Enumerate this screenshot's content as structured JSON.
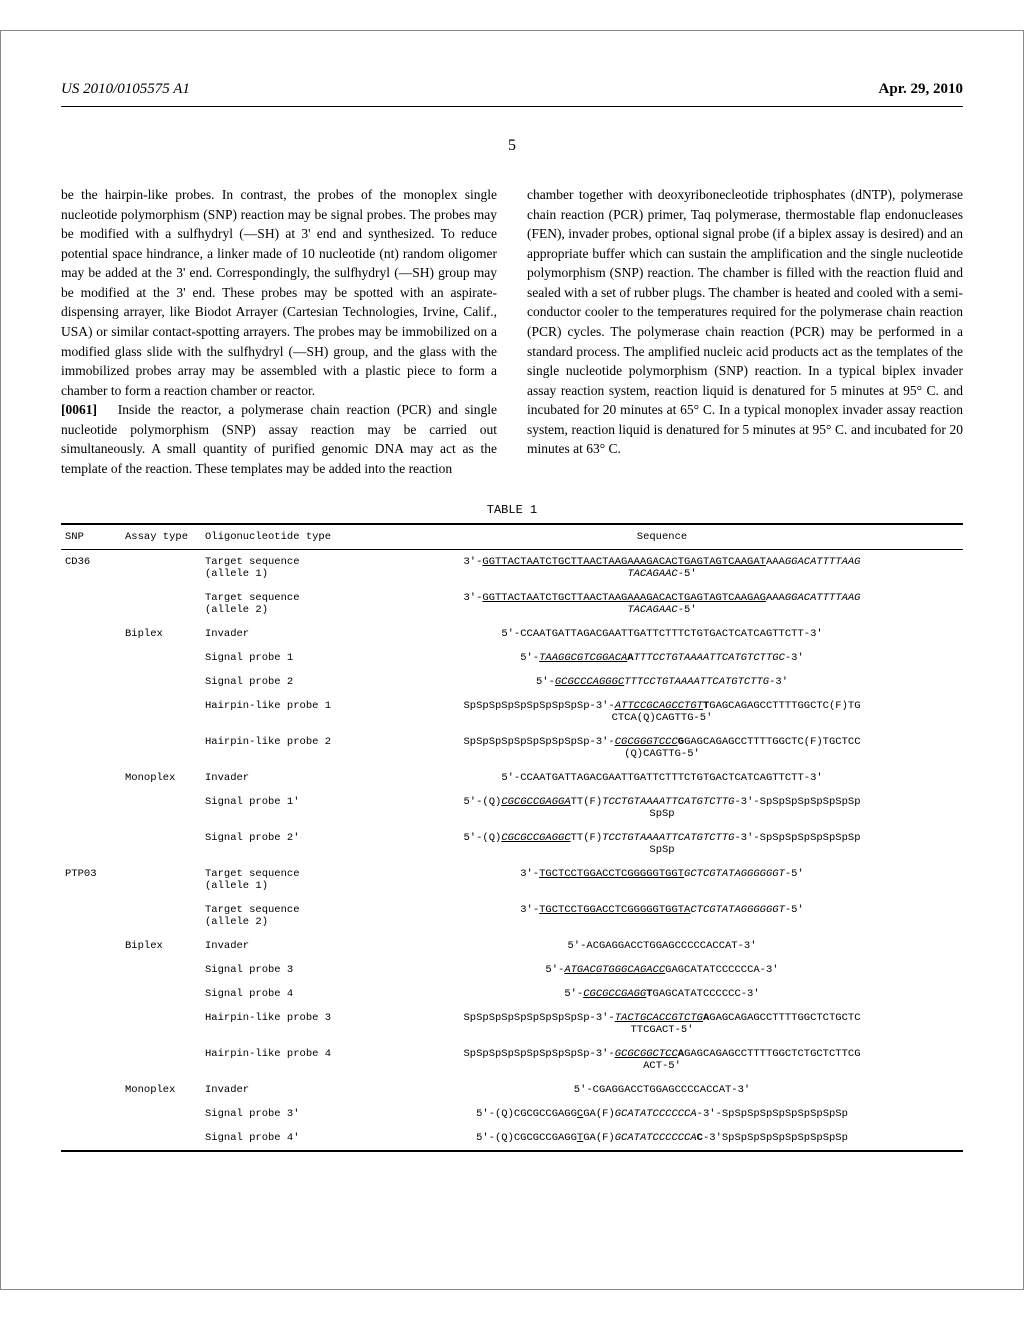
{
  "header": {
    "left": "US 2010/0105575 A1",
    "right": "Apr. 29, 2010",
    "page_number": "5"
  },
  "body": {
    "col1": {
      "p1": "be the hairpin-like probes. In contrast, the probes of the monoplex single nucleotide polymorphism (SNP) reaction may be signal probes. The probes may be modified with a sulfhydryl (—SH) at 3' end and synthesized. To reduce potential space hindrance, a linker made of 10 nucleotide (nt) random oligomer may be added at the 3' end. Correspondingly, the sulfhydryl (—SH) group may be modified at the 3' end. These probes may be spotted with an aspirate-dispensing arrayer, like Biodot Arrayer (Cartesian Technologies, Irvine, Calif., USA) or similar contact-spotting arrayers. The probes may be immobilized on a modified glass slide with the sulfhydryl (—SH) group, and the glass with the immobilized probes array may be assembled with a plastic piece to form a chamber to form a reaction chamber or reactor.",
      "p2_num": "[0061]",
      "p2": "Inside the reactor, a polymerase chain reaction (PCR) and single nucleotide polymorphism (SNP) assay reaction may be carried out simultaneously. A small quantity of purified genomic DNA may act as the template of the reaction. These templates may be added into the reaction"
    },
    "col2": {
      "p1": "chamber together with deoxyribonecleotide triphosphates (dNTP), polymerase chain reaction (PCR) primer, Taq polymerase, thermostable flap endonucleases (FEN), invader probes, optional signal probe (if a biplex assay is desired) and an appropriate buffer which can sustain the amplification and the single nucleotide polymorphism (SNP) reaction. The chamber is filled with the reaction fluid and sealed with a set of rubber plugs. The chamber is heated and cooled with a semi-conductor cooler to the temperatures required for the polymerase chain reaction (PCR) cycles. The polymerase chain reaction (PCR) may be performed in a standard process. The amplified nucleic acid products act as the templates of the single nucleotide polymorphism (SNP) reaction. In a typical biplex invader assay reaction system, reaction liquid is denatured for 5 minutes at 95° C. and incubated for 20 minutes at 65° C. In a typical monoplex invader assay reaction system, reaction liquid is denatured for 5 minutes at 95° C. and incubated for 20 minutes at 63° C."
    }
  },
  "table": {
    "label": "TABLE 1",
    "headers": {
      "snp": "SNP",
      "assay": "Assay type",
      "oligo": "Oligonucleotide type",
      "seq": "Sequence"
    }
  }
}
